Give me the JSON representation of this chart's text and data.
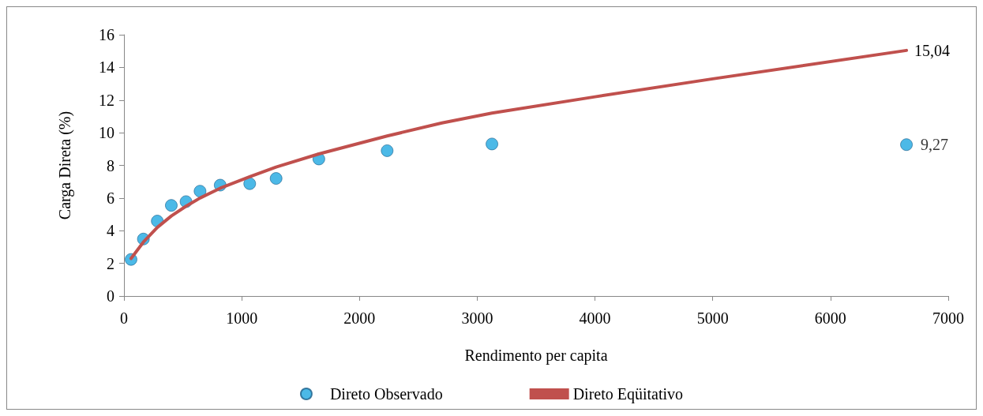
{
  "chart_data": {
    "type": "scatter",
    "xlabel": "Rendimento per capita",
    "ylabel": "Carga Direta (%)",
    "xlim": [
      0,
      7000
    ],
    "xticks": [
      0,
      1000,
      2000,
      3000,
      4000,
      5000,
      6000,
      7000
    ],
    "ylim": [
      0,
      16
    ],
    "yticks": [
      0,
      2,
      4,
      6,
      8,
      10,
      12,
      14,
      16
    ],
    "grid": false,
    "legend": "bottom",
    "series": [
      {
        "name": "Direto Observado",
        "type": "scatter",
        "marker": "circle",
        "color": "#1fa7e1",
        "x": [
          60,
          165,
          283,
          402,
          527,
          646,
          817,
          1068,
          1292,
          1655,
          2235,
          3125,
          6645
        ],
        "values": [
          2.24,
          3.49,
          4.59,
          5.55,
          5.78,
          6.42,
          6.79,
          6.88,
          7.2,
          8.39,
          8.9,
          9.31,
          9.27
        ],
        "value_labels": [
          null,
          null,
          null,
          null,
          null,
          null,
          null,
          null,
          null,
          null,
          null,
          null,
          "9,27"
        ]
      },
      {
        "name": "Direto Eqüitativo",
        "type": "line",
        "marker": "none",
        "color": "#c0504d",
        "x": [
          60,
          165,
          283,
          402,
          527,
          646,
          817,
          1068,
          1292,
          1655,
          2235,
          2700,
          3125,
          4000,
          5000,
          6645
        ],
        "values": [
          2.3,
          3.3,
          4.2,
          4.9,
          5.5,
          6.0,
          6.6,
          7.3,
          7.9,
          8.7,
          9.8,
          10.6,
          11.2,
          12.2,
          13.3,
          15.04
        ],
        "value_labels": [
          null,
          null,
          null,
          null,
          null,
          null,
          null,
          null,
          null,
          null,
          null,
          null,
          null,
          null,
          null,
          "15,04"
        ]
      }
    ]
  }
}
